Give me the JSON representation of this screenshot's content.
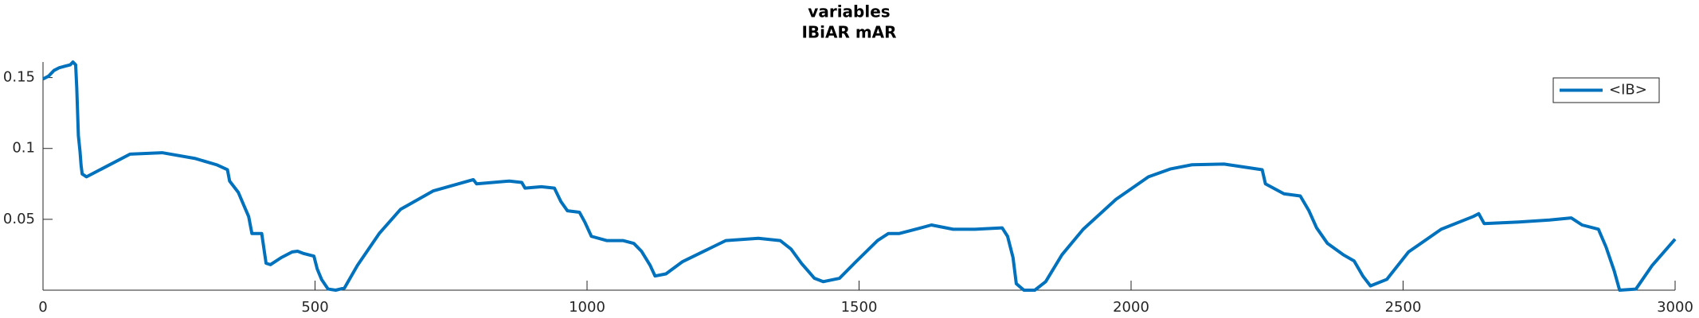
{
  "chart_data": {
    "type": "line",
    "title": [
      "variables",
      "IBiAR mAR"
    ],
    "x": [
      0,
      10,
      20,
      30,
      40,
      50,
      55,
      60,
      62,
      65,
      68,
      70,
      72,
      80,
      160,
      219,
      279,
      319,
      339,
      343,
      359,
      369,
      378,
      384,
      402,
      410,
      418,
      438,
      458,
      468,
      478,
      498,
      504,
      512,
      524,
      538,
      554,
      578,
      618,
      657,
      717,
      791,
      797,
      857,
      880,
      886,
      916,
      940,
      952,
      964,
      986,
      996,
      1008,
      1036,
      1066,
      1086,
      1100,
      1116,
      1125,
      1145,
      1175,
      1215,
      1255,
      1315,
      1355,
      1375,
      1394,
      1418,
      1434,
      1464,
      1494,
      1534,
      1554,
      1574,
      1614,
      1633,
      1673,
      1713,
      1763,
      1773,
      1783,
      1789,
      1803,
      1823,
      1843,
      1873,
      1912,
      1972,
      2032,
      2072,
      2112,
      2171,
      2241,
      2247,
      2281,
      2311,
      2327,
      2341,
      2361,
      2390,
      2410,
      2426,
      2440,
      2470,
      2510,
      2570,
      2629,
      2639,
      2649,
      2709,
      2769,
      2809,
      2829,
      2859,
      2873,
      2888,
      2898,
      2928,
      2958,
      3000
    ],
    "series": [
      {
        "name": "<IB>",
        "color": "#0072bd",
        "values": [
          0.149,
          0.151,
          0.155,
          0.157,
          0.158,
          0.159,
          0.161,
          0.159,
          0.143,
          0.109,
          0.098,
          0.088,
          0.082,
          0.08,
          0.096,
          0.097,
          0.093,
          0.0885,
          0.085,
          0.077,
          0.069,
          0.06,
          0.052,
          0.04,
          0.04,
          0.019,
          0.018,
          0.023,
          0.027,
          0.0275,
          0.026,
          0.024,
          0.015,
          0.0076,
          0.0008,
          0,
          0.0015,
          0.0175,
          0.04,
          0.057,
          0.07,
          0.078,
          0.075,
          0.077,
          0.076,
          0.072,
          0.073,
          0.072,
          0.0625,
          0.056,
          0.055,
          0.048,
          0.038,
          0.035,
          0.035,
          0.033,
          0.0275,
          0.0175,
          0.01,
          0.0115,
          0.02,
          0.0275,
          0.035,
          0.0366,
          0.035,
          0.029,
          0.019,
          0.0084,
          0.006,
          0.0084,
          0.02,
          0.035,
          0.04,
          0.04,
          0.044,
          0.046,
          0.043,
          0.043,
          0.044,
          0.038,
          0.023,
          0.0046,
          0,
          0,
          0.006,
          0.025,
          0.043,
          0.064,
          0.08,
          0.0855,
          0.0885,
          0.089,
          0.085,
          0.075,
          0.068,
          0.0665,
          0.056,
          0.044,
          0.033,
          0.025,
          0.0206,
          0.01,
          0.003,
          0.0076,
          0.027,
          0.043,
          0.052,
          0.054,
          0.047,
          0.048,
          0.0495,
          0.051,
          0.046,
          0.043,
          0.0305,
          0.0137,
          0,
          0.0008,
          0.0175,
          0.036
        ]
      }
    ],
    "xlim": [
      0,
      3000
    ],
    "xticks": [
      0,
      500,
      1000,
      1500,
      2000,
      2500,
      3000
    ],
    "ylim": [
      0,
      0.161
    ],
    "yticks": [
      0.05,
      0.1,
      0.15
    ],
    "grid": false,
    "legend": "upper right"
  }
}
